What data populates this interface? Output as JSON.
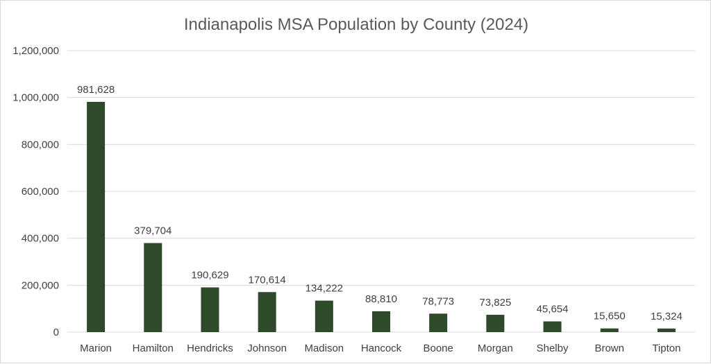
{
  "chart_data": {
    "type": "bar",
    "title": "Indianapolis MSA Population by County (2024)",
    "xlabel": "",
    "ylabel": "",
    "categories": [
      "Marion",
      "Hamilton",
      "Hendricks",
      "Johnson",
      "Madison",
      "Hancock",
      "Boone",
      "Morgan",
      "Shelby",
      "Brown",
      "Tipton"
    ],
    "values": [
      981628,
      379704,
      190629,
      170614,
      134222,
      88810,
      78773,
      73825,
      45654,
      15650,
      15324
    ],
    "data_labels": [
      "981,628",
      "379,704",
      "190,629",
      "170,614",
      "134,222",
      "88,810",
      "78,773",
      "73,825",
      "45,654",
      "15,650",
      "15,324"
    ],
    "ylim": [
      0,
      1200000
    ],
    "y_ticks": [
      0,
      200000,
      400000,
      600000,
      800000,
      1000000,
      1200000
    ],
    "y_tick_labels": [
      "0",
      "200,000",
      "400,000",
      "600,000",
      "800,000",
      "1,000,000",
      "1,200,000"
    ],
    "grid": true,
    "legend": "none",
    "bar_color": "#2e4a2a"
  }
}
